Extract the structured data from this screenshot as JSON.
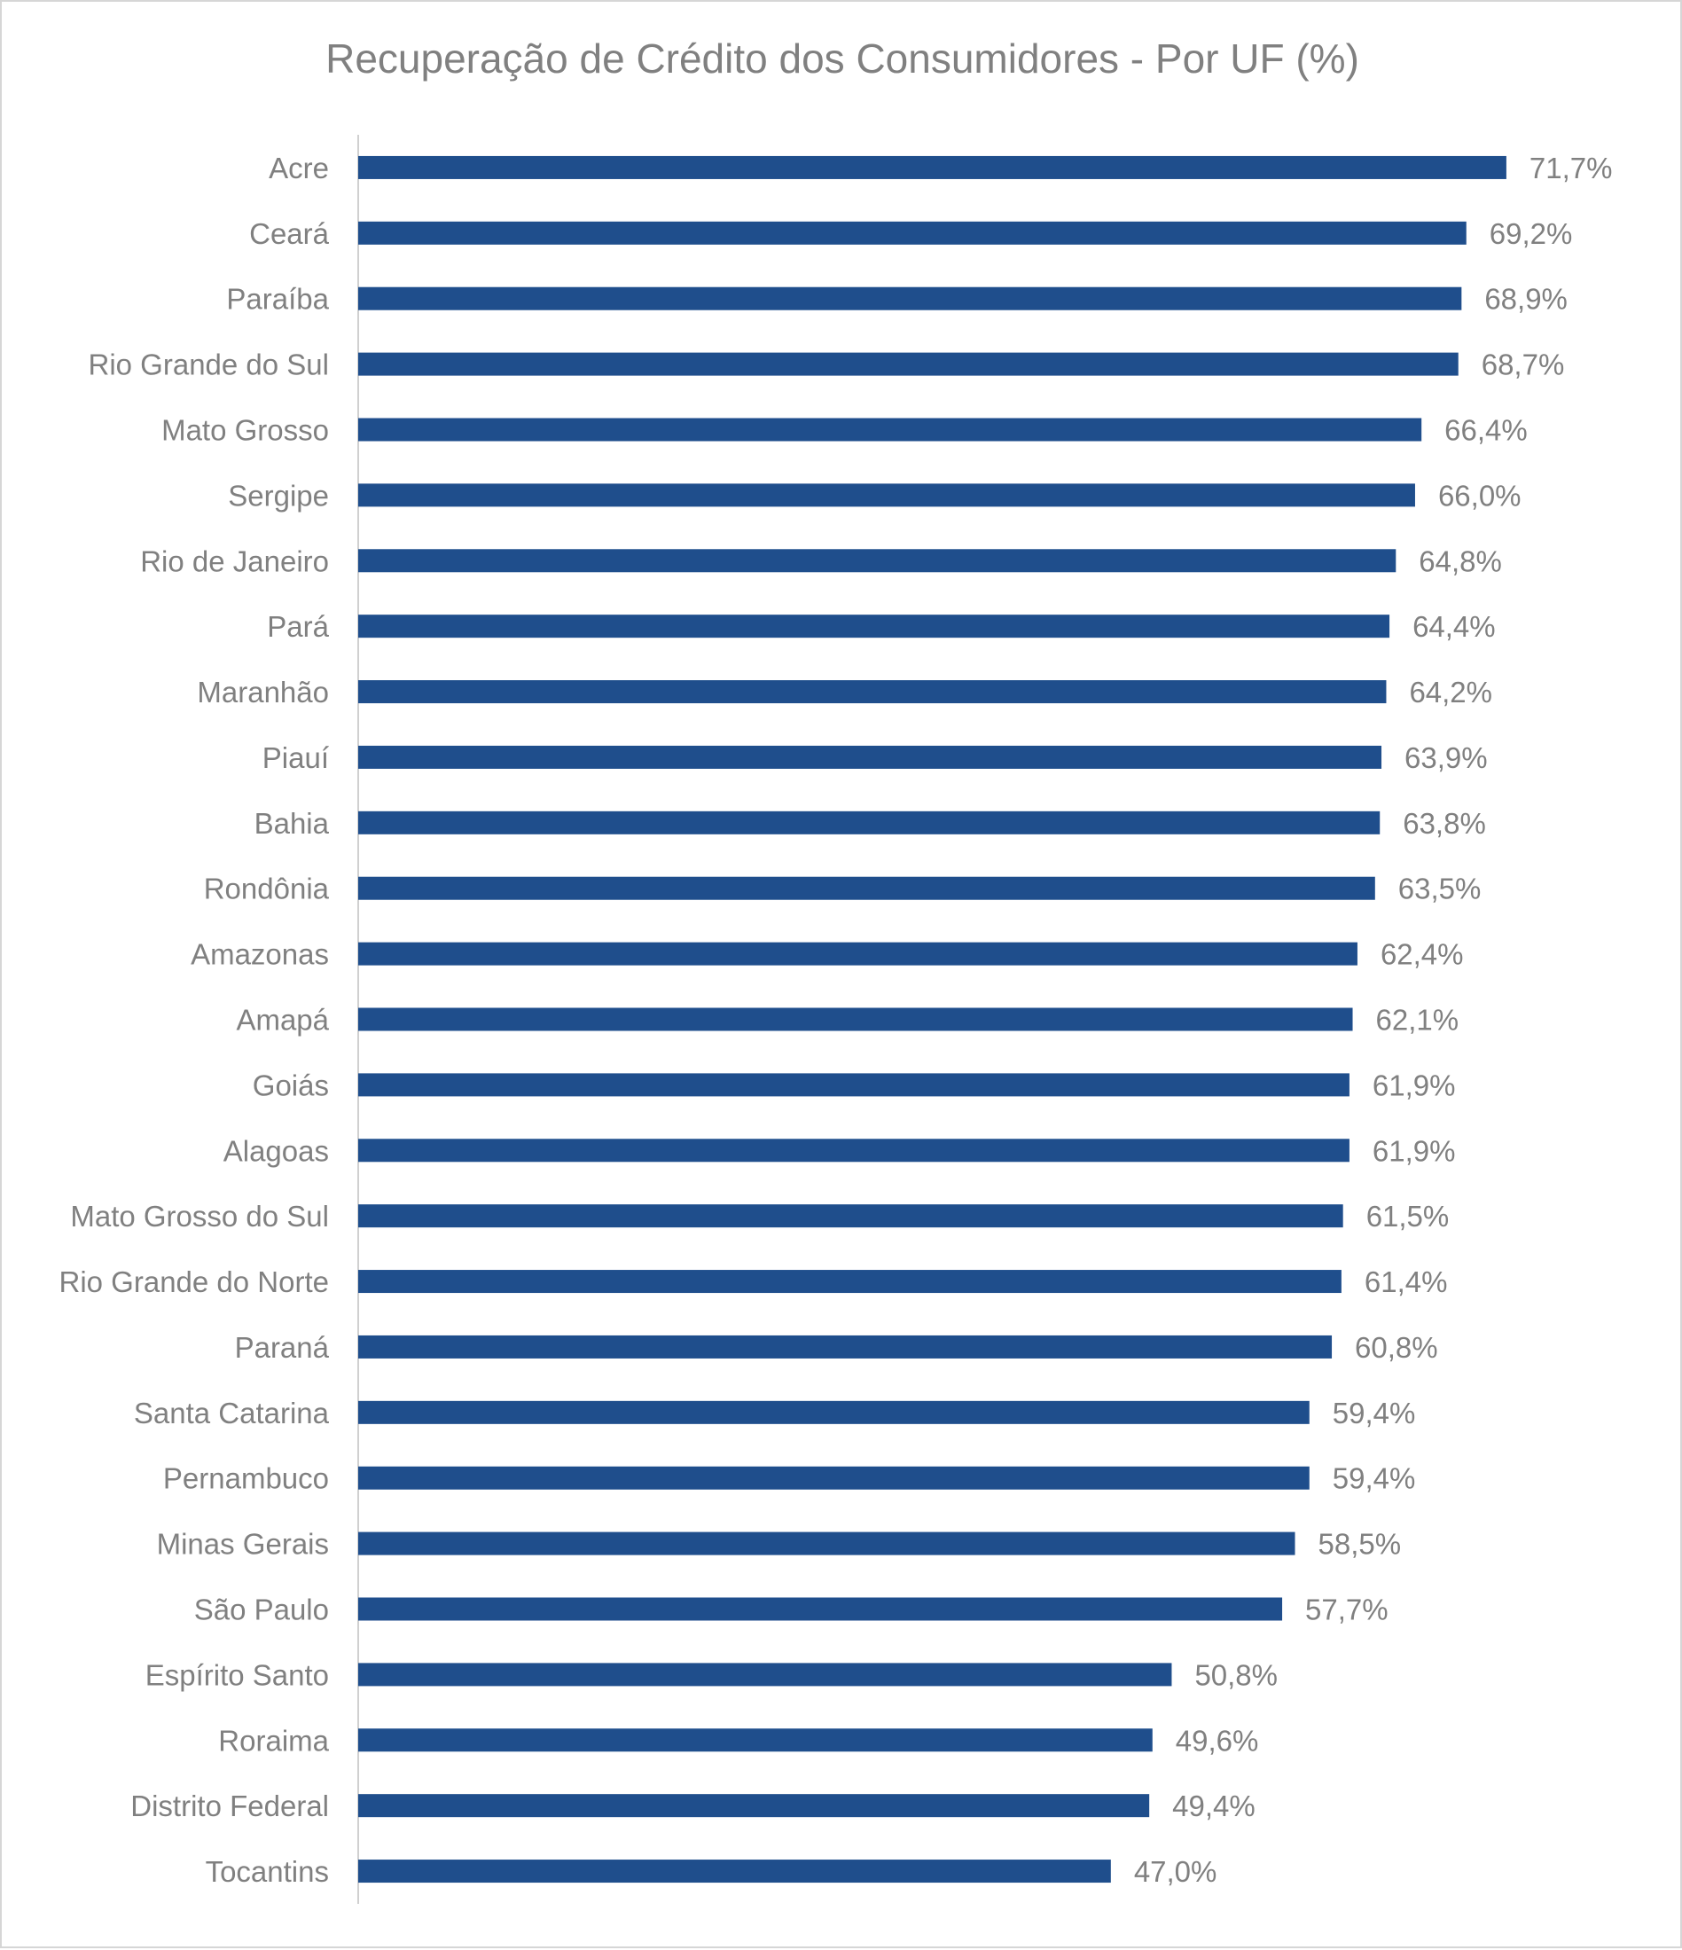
{
  "chart_data": {
    "type": "bar",
    "orientation": "horizontal",
    "title": "Recuperação de Crédito dos Consumidores - Por UF (%)",
    "xlabel": "",
    "ylabel": "",
    "grid": false,
    "legend": "none",
    "bar_color": "#1f4e8c",
    "text_color": "#808080",
    "axis_color": "#d0d0d0",
    "xlim": [
      0,
      80
    ],
    "categories": [
      "Acre",
      "Ceará",
      "Paraíba",
      "Rio Grande do Sul",
      "Mato Grosso",
      "Sergipe",
      "Rio de Janeiro",
      "Pará",
      "Maranhão",
      "Piauí",
      "Bahia",
      "Rondônia",
      "Amazonas",
      "Amapá",
      "Goiás",
      "Alagoas",
      "Mato Grosso do Sul",
      "Rio Grande do Norte",
      "Paraná",
      "Santa Catarina",
      "Pernambuco",
      "Minas Gerais",
      "São Paulo",
      "Espírito Santo",
      "Roraima",
      "Distrito Federal",
      "Tocantins"
    ],
    "values": [
      71.7,
      69.2,
      68.9,
      68.7,
      66.4,
      66.0,
      64.8,
      64.4,
      64.2,
      63.9,
      63.8,
      63.5,
      62.4,
      62.1,
      61.9,
      61.9,
      61.5,
      61.4,
      60.8,
      59.4,
      59.4,
      58.5,
      57.7,
      50.8,
      49.6,
      49.4,
      47.0
    ],
    "value_labels": [
      "71,7%",
      "69,2%",
      "68,9%",
      "68,7%",
      "66,4%",
      "66,0%",
      "64,8%",
      "64,4%",
      "64,2%",
      "63,9%",
      "63,8%",
      "63,5%",
      "62,4%",
      "62,1%",
      "61,9%",
      "61,9%",
      "61,5%",
      "61,4%",
      "60,8%",
      "59,4%",
      "59,4%",
      "58,5%",
      "57,7%",
      "50,8%",
      "49,6%",
      "49,4%",
      "47,0%"
    ]
  }
}
